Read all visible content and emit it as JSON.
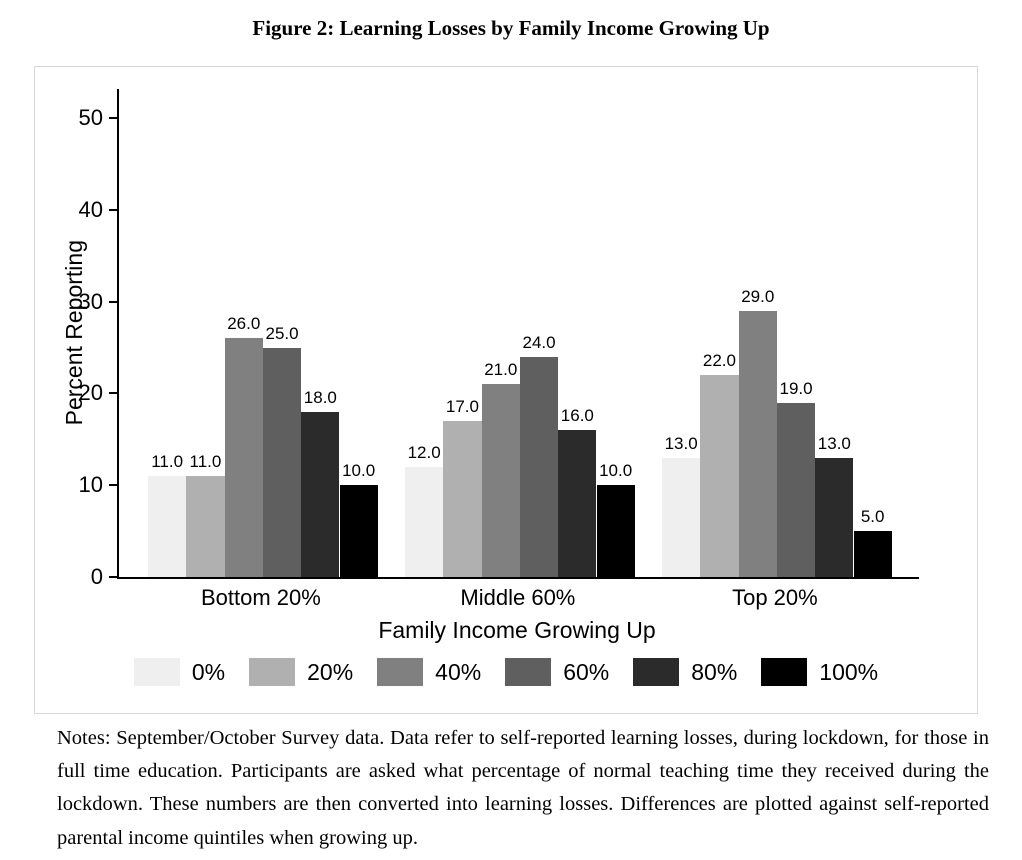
{
  "figure": {
    "title": "Figure 2: Learning Losses by Family Income Growing Up",
    "notes": "Notes: September/October Survey data. Data refer to self-reported learning losses, during lockdown, for those in full time education. Participants are asked what percentage of normal teaching time they received during the lockdown. These numbers are then converted into learning losses. Differences are plotted against self-reported parental income quintiles when growing up."
  },
  "chart_data": {
    "type": "bar",
    "title": "",
    "xlabel": "Family Income Growing Up",
    "ylabel": "Percent Reporting",
    "categories": [
      "Bottom 20%",
      "Middle 60%",
      "Top 20%"
    ],
    "series": [
      {
        "name": "0%",
        "color": "#efefef",
        "values": [
          11.0,
          12.0,
          13.0
        ]
      },
      {
        "name": "20%",
        "color": "#b0b0b0",
        "values": [
          11.0,
          17.0,
          22.0
        ]
      },
      {
        "name": "40%",
        "color": "#808080",
        "values": [
          26.0,
          21.0,
          29.0
        ]
      },
      {
        "name": "60%",
        "color": "#5f5f5f",
        "values": [
          25.0,
          24.0,
          19.0
        ]
      },
      {
        "name": "80%",
        "color": "#2b2b2b",
        "values": [
          18.0,
          16.0,
          13.0
        ]
      },
      {
        "name": "100%",
        "color": "#000000",
        "values": [
          10.0,
          10.0,
          5.0
        ]
      }
    ],
    "yticks": [
      0,
      10,
      20,
      30,
      40,
      50
    ],
    "ylim": [
      0,
      53
    ],
    "grid": false,
    "legend_position": "bottom",
    "bar_labels": true,
    "axis_color": "#000000"
  }
}
